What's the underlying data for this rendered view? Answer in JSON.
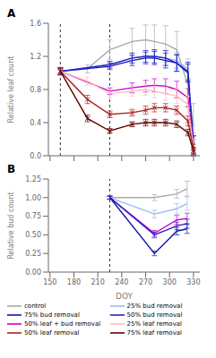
{
  "chart_data": [
    {
      "type": "line",
      "title": "A",
      "ylabel": "Relative leaf count",
      "xlim": [
        148,
        338
      ],
      "xticks": [
        150,
        180,
        210,
        240,
        270,
        300,
        330
      ],
      "ylim": [
        0.0,
        1.6
      ],
      "yticks": [
        {
          "value": 0,
          "label": "0.0"
        },
        0.4,
        0.8,
        1.2,
        1.6
      ],
      "vlines": [
        163,
        225
      ],
      "grid": false,
      "tick_labels": "y",
      "legend": "bottom",
      "series": [
        {
          "name": "control",
          "color": "#aaaaaa",
          "x": [
            163,
            197,
            225,
            253,
            270,
            281,
            295,
            309,
            323,
            330
          ],
          "values": [
            1.02,
            1.05,
            1.28,
            1.38,
            1.4,
            1.38,
            1.35,
            1.28,
            0.85,
            0.35
          ],
          "yerr": [
            0.05,
            0.05,
            0.12,
            0.16,
            0.18,
            0.2,
            0.22,
            0.22,
            0.25,
            0.28
          ]
        },
        {
          "name": "25% bud removal",
          "color": "#99bbee",
          "x": [
            163,
            225,
            253,
            270,
            281,
            295,
            309,
            323,
            330
          ],
          "values": [
            1.02,
            1.1,
            1.18,
            1.2,
            1.2,
            1.18,
            1.15,
            1.05,
            0.15
          ],
          "yerr": [
            0.04,
            0.04,
            0.06,
            0.07,
            0.08,
            0.09,
            0.1,
            0.12,
            0.12
          ]
        },
        {
          "name": "75% bud removal",
          "color": "#1515aa",
          "x": [
            163,
            225,
            253,
            270,
            281,
            295,
            309,
            323,
            330
          ],
          "values": [
            1.02,
            1.08,
            1.15,
            1.18,
            1.18,
            1.15,
            1.12,
            1.0,
            0.12
          ],
          "yerr": [
            0.04,
            0.04,
            0.06,
            0.07,
            0.08,
            0.09,
            0.1,
            0.11,
            0.12
          ]
        },
        {
          "name": "50% bud removal",
          "color": "#2222cc",
          "x": [
            163,
            225,
            253,
            270,
            281,
            295,
            309,
            323,
            330
          ],
          "values": [
            1.02,
            1.1,
            1.18,
            1.2,
            1.2,
            1.18,
            1.12,
            1.02,
            0.12
          ],
          "yerr": [
            0.04,
            0.04,
            0.06,
            0.07,
            0.08,
            0.09,
            0.1,
            0.11,
            0.12
          ]
        },
        {
          "name": "50% leaf + bud removal",
          "color": "#cc00cc",
          "x": [
            163,
            225,
            253,
            270,
            281,
            295,
            309,
            323,
            330
          ],
          "values": [
            1.02,
            0.78,
            0.82,
            0.84,
            0.85,
            0.84,
            0.8,
            0.7,
            0.1
          ],
          "yerr": [
            0.04,
            0.04,
            0.06,
            0.07,
            0.08,
            0.09,
            0.1,
            0.11,
            0.1
          ]
        },
        {
          "name": "25% leaf removal",
          "color": "#ffbbbb",
          "x": [
            163,
            197,
            225,
            253,
            270,
            281,
            295,
            309,
            323,
            330
          ],
          "values": [
            1.02,
            0.9,
            0.75,
            0.78,
            0.8,
            0.78,
            0.75,
            0.72,
            0.62,
            0.1
          ],
          "yerr": [
            0.04,
            0.05,
            0.05,
            0.06,
            0.07,
            0.08,
            0.08,
            0.09,
            0.1,
            0.1
          ]
        },
        {
          "name": "50% leaf removal",
          "color": "#aa2222",
          "marker": "x",
          "x": [
            163,
            197,
            225,
            253,
            270,
            281,
            295,
            309,
            323,
            330
          ],
          "values": [
            1.02,
            0.68,
            0.5,
            0.52,
            0.55,
            0.58,
            0.58,
            0.55,
            0.42,
            0.08
          ],
          "yerr": [
            0.04,
            0.05,
            0.04,
            0.04,
            0.05,
            0.05,
            0.05,
            0.05,
            0.06,
            0.06
          ]
        },
        {
          "name": "75% leaf removal",
          "color": "#660000",
          "marker": "x",
          "x": [
            163,
            197,
            225,
            253,
            270,
            281,
            295,
            309,
            323,
            330
          ],
          "values": [
            1.02,
            0.45,
            0.3,
            0.38,
            0.4,
            0.4,
            0.4,
            0.38,
            0.28,
            0.06
          ],
          "yerr": [
            0.04,
            0.04,
            0.03,
            0.03,
            0.04,
            0.04,
            0.04,
            0.04,
            0.04,
            0.04
          ]
        }
      ]
    },
    {
      "type": "line",
      "title": "B",
      "ylabel": "Relative bud count",
      "xlabel": "DOY",
      "xlim": [
        148,
        338
      ],
      "xticks": [
        150,
        180,
        210,
        240,
        270,
        300,
        330
      ],
      "ylim": [
        0.0,
        1.25
      ],
      "yticks": [
        {
          "value": 0,
          "label": "0.00"
        },
        0.25,
        {
          "value": 0.5,
          "label": "0.50"
        },
        0.75,
        {
          "value": 1,
          "label": "1.00"
        },
        1.25
      ],
      "vlines": [
        225
      ],
      "grid": false,
      "series": [
        {
          "name": "control",
          "color": "#aaaaaa",
          "x": [
            225,
            281,
            309,
            322
          ],
          "values": [
            1.0,
            1.0,
            1.05,
            1.12
          ],
          "yerr": [
            0.02,
            0.04,
            0.06,
            0.1
          ]
        },
        {
          "name": "25% bud removal",
          "color": "#99bbee",
          "x": [
            225,
            281,
            309,
            322
          ],
          "values": [
            1.0,
            0.78,
            0.85,
            0.92
          ],
          "yerr": [
            0.02,
            0.05,
            0.07,
            0.09
          ]
        },
        {
          "name": "50% leaf + bud removal",
          "color": "#cc00cc",
          "x": [
            225,
            281,
            309,
            322
          ],
          "values": [
            1.0,
            0.52,
            0.7,
            0.72
          ],
          "yerr": [
            0.02,
            0.04,
            0.06,
            0.07
          ]
        },
        {
          "name": "50% bud removal",
          "color": "#2222cc",
          "x": [
            225,
            281,
            309,
            322
          ],
          "values": [
            1.0,
            0.5,
            0.62,
            0.65
          ],
          "yerr": [
            0.02,
            0.04,
            0.05,
            0.06
          ]
        },
        {
          "name": "75% bud removal",
          "color": "#1515aa",
          "x": [
            225,
            281,
            309,
            322
          ],
          "values": [
            1.0,
            0.25,
            0.55,
            0.58
          ],
          "yerr": [
            0.02,
            0.03,
            0.05,
            0.06
          ]
        }
      ]
    }
  ]
}
